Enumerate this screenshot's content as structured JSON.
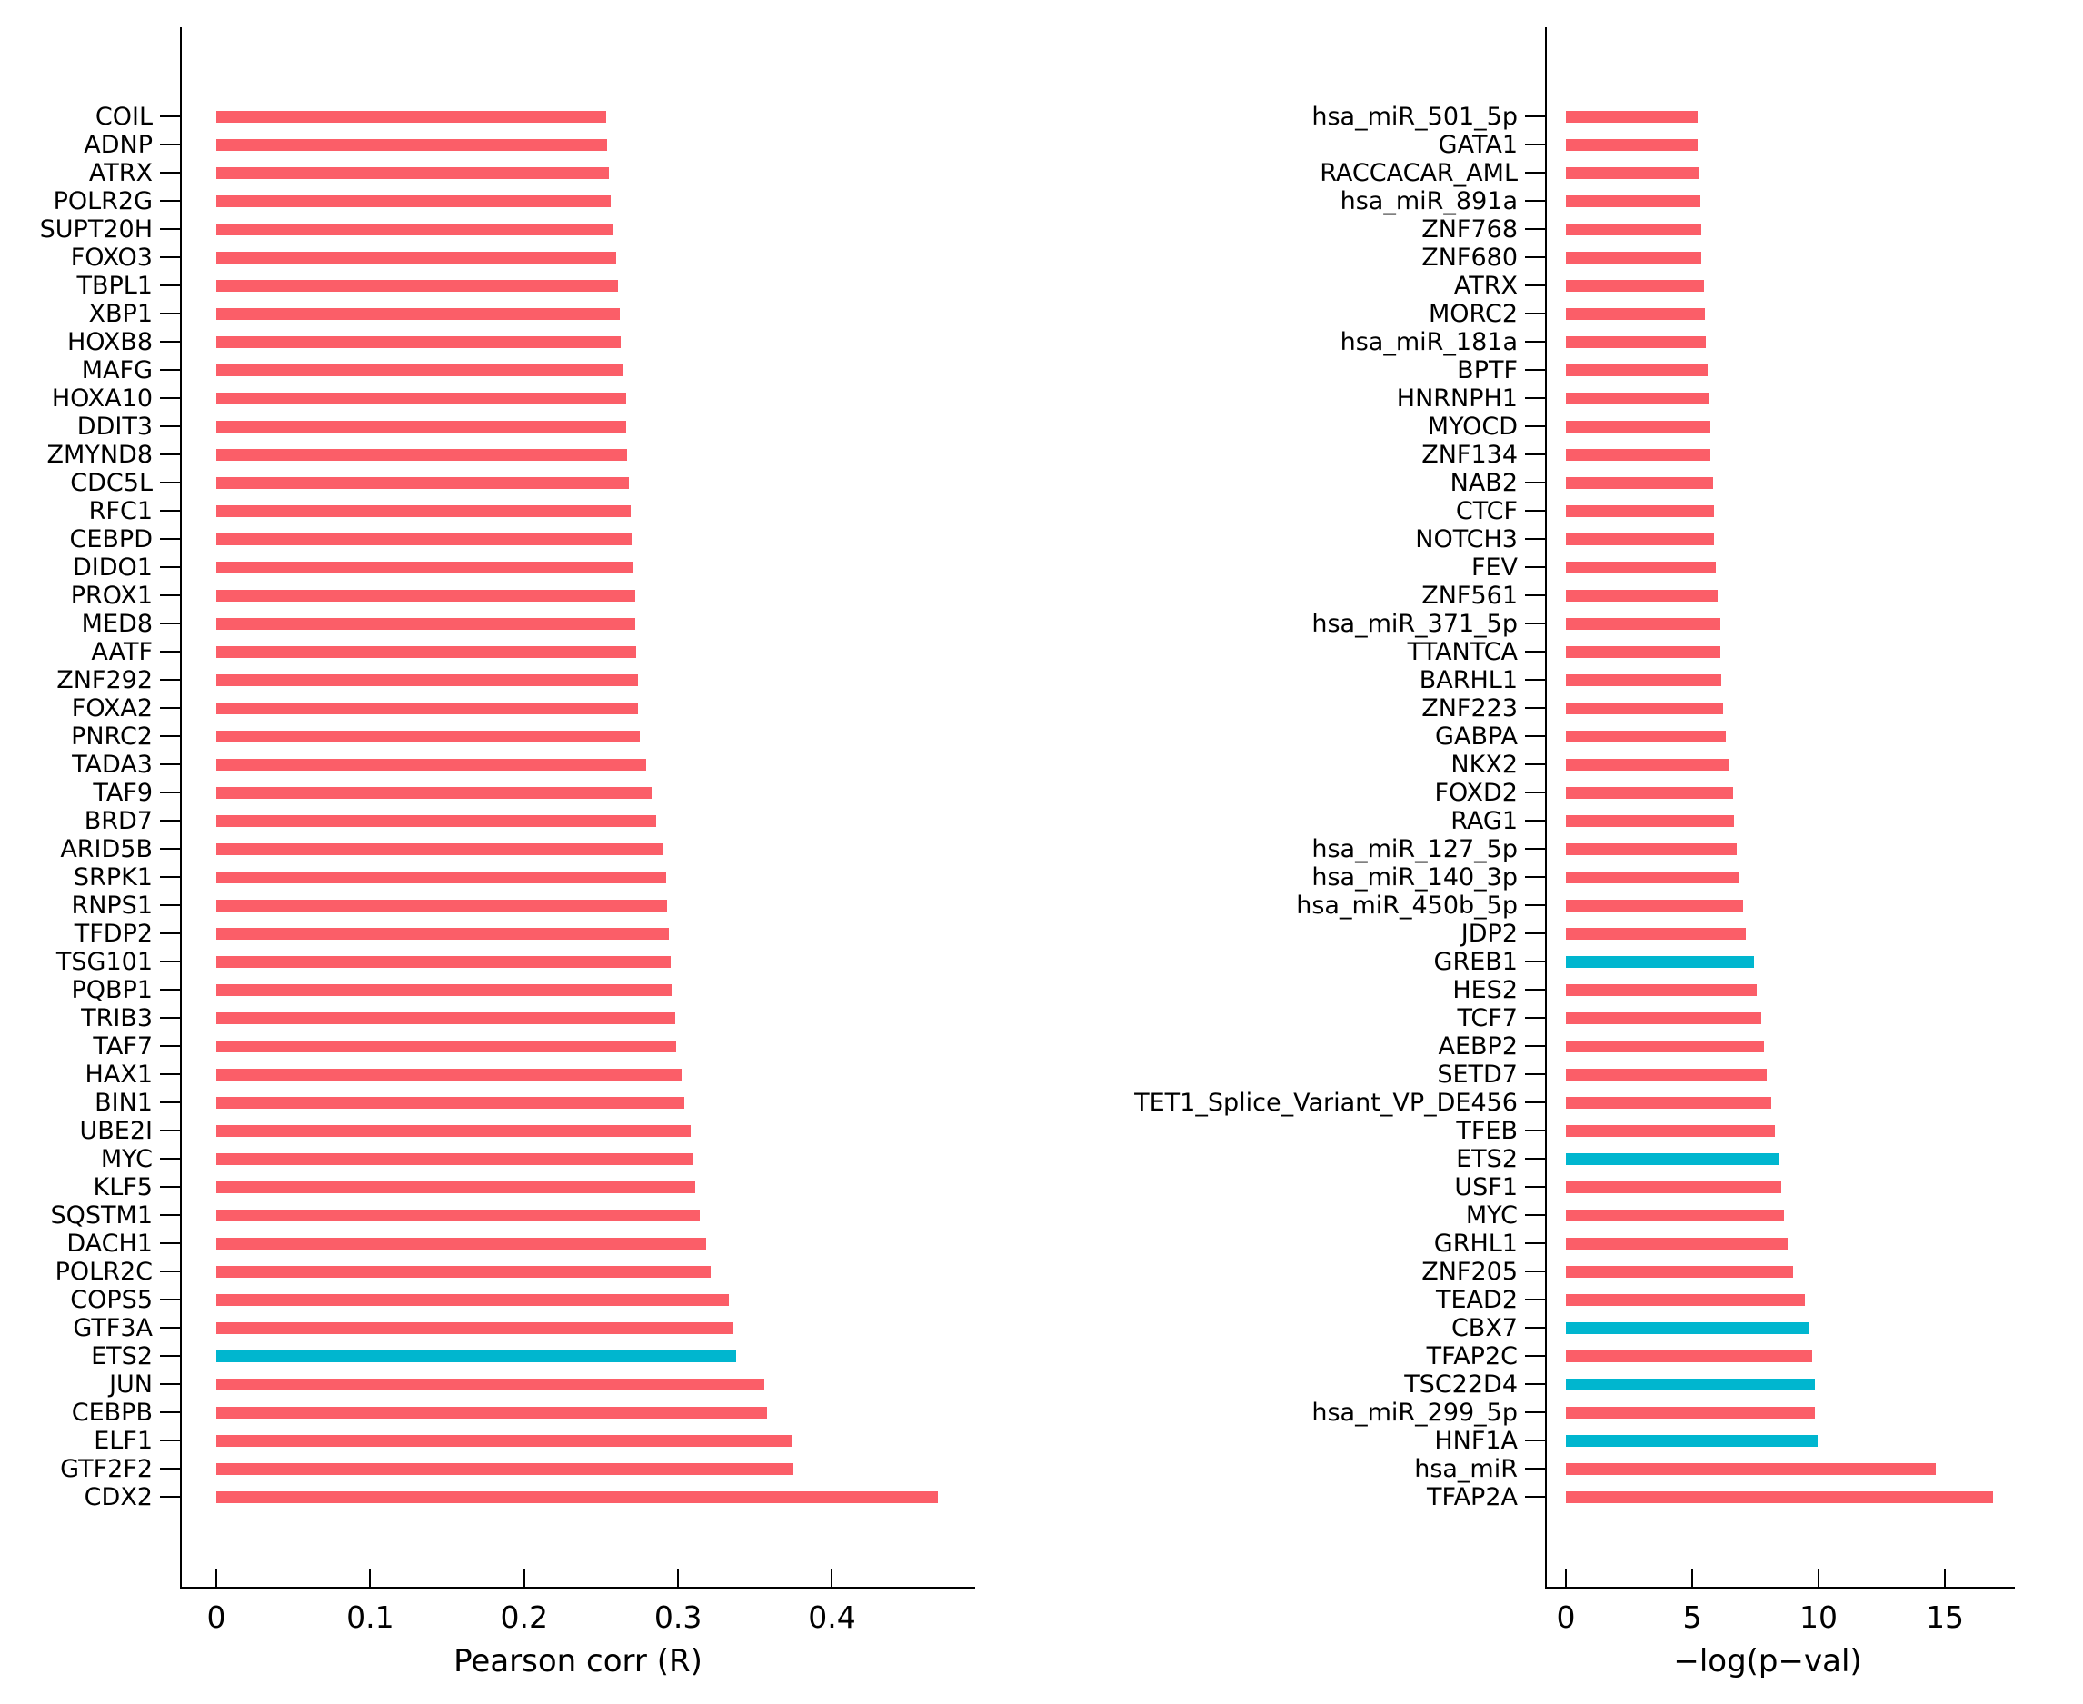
{
  "figure": {
    "background": "#ffffff"
  },
  "palette": {
    "bar_red": "#FB5E68",
    "bar_cyan": "#00B6CF",
    "axis_color": "#000000",
    "text_color": "#000000"
  },
  "chart_data": [
    {
      "type": "bar",
      "orientation": "horizontal",
      "title": "",
      "xlabel": "Pearson corr (R)",
      "ylabel": "",
      "grid": false,
      "legend": null,
      "xlim": [
        0,
        0.493
      ],
      "xticks": [
        0,
        0.1,
        0.2,
        0.3,
        0.4
      ],
      "xtick_labels": [
        "0",
        "0.1",
        "0.2",
        "0.3",
        "0.4"
      ],
      "categories": [
        "COIL",
        "ADNP",
        "ATRX",
        "POLR2G",
        "SUPT20H",
        "FOXO3",
        "TBPL1",
        "XBP1",
        "HOXB8",
        "MAFG",
        "HOXA10",
        "DDIT3",
        "ZMYND8",
        "CDC5L",
        "RFC1",
        "CEBPD",
        "DIDO1",
        "PROX1",
        "MED8",
        "AATF",
        "ZNF292",
        "FOXA2",
        "PNRC2",
        "TADA3",
        "TAF9",
        "BRD7",
        "ARID5B",
        "SRPK1",
        "RNPS1",
        "TFDP2",
        "TSG101",
        "PQBP1",
        "TRIB3",
        "TAF7",
        "HAX1",
        "BIN1",
        "UBE2I",
        "MYC",
        "KLF5",
        "SQSTM1",
        "DACH1",
        "POLR2C",
        "COPS5",
        "GTF3A",
        "ETS2",
        "JUN",
        "CEBPB",
        "ELF1",
        "GTF2F2",
        "CDX2"
      ],
      "values": [
        0.253,
        0.254,
        0.255,
        0.256,
        0.258,
        0.26,
        0.261,
        0.262,
        0.263,
        0.264,
        0.266,
        0.266,
        0.267,
        0.268,
        0.269,
        0.27,
        0.271,
        0.272,
        0.272,
        0.273,
        0.274,
        0.274,
        0.275,
        0.279,
        0.283,
        0.286,
        0.29,
        0.292,
        0.293,
        0.294,
        0.295,
        0.296,
        0.298,
        0.299,
        0.302,
        0.304,
        0.308,
        0.31,
        0.311,
        0.314,
        0.318,
        0.321,
        0.333,
        0.336,
        0.338,
        0.356,
        0.358,
        0.374,
        0.375,
        0.469
      ],
      "highlight_indices": [
        44
      ],
      "bar_color_key": "bar_red",
      "highlight_color_key": "bar_cyan"
    },
    {
      "type": "bar",
      "orientation": "horizontal",
      "title": "",
      "xlabel": "−log(p−val)",
      "ylabel": "",
      "grid": false,
      "legend": null,
      "xlim": [
        0,
        17.77
      ],
      "xticks": [
        0,
        5,
        10,
        15
      ],
      "xtick_labels": [
        "0",
        "5",
        "10",
        "15"
      ],
      "categories": [
        "hsa_miR_501_5p",
        "GATA1",
        "RACCACAR_AML",
        "hsa_miR_891a",
        "ZNF768",
        "ZNF680",
        "ATRX",
        "MORC2",
        "hsa_miR_181a",
        "BPTF",
        "HNRNPH1",
        "MYOCD",
        "ZNF134",
        "NAB2",
        "CTCF",
        "NOTCH3",
        "FEV",
        "ZNF561",
        "hsa_miR_371_5p",
        "TTANTCA",
        "BARHL1",
        "ZNF223",
        "GABPA",
        "NKX2",
        "FOXD2",
        "RAG1",
        "hsa_miR_127_5p",
        "hsa_miR_140_3p",
        "hsa_miR_450b_5p",
        "JDP2",
        "GREB1",
        "HES2",
        "TCF7",
        "AEBP2",
        "SETD7",
        "TET1_Splice_Variant_VP_DE456",
        "TFEB",
        "ETS2",
        "USF1",
        "MYC",
        "GRHL1",
        "ZNF205",
        "TEAD2",
        "CBX7",
        "TFAP2C",
        "TSC22D4",
        "hsa_miR_299_5p",
        "HNF1A",
        "hsa_miR",
        "TFAP2A"
      ],
      "values": [
        5.2,
        5.23,
        5.25,
        5.31,
        5.37,
        5.37,
        5.48,
        5.51,
        5.54,
        5.61,
        5.64,
        5.72,
        5.72,
        5.81,
        5.88,
        5.88,
        5.95,
        6.02,
        6.12,
        6.12,
        6.16,
        6.23,
        6.33,
        6.47,
        6.61,
        6.66,
        6.78,
        6.83,
        7.0,
        7.12,
        7.46,
        7.54,
        7.72,
        7.85,
        7.96,
        8.14,
        8.27,
        8.41,
        8.52,
        8.64,
        8.78,
        8.98,
        9.47,
        9.6,
        9.76,
        9.84,
        9.87,
        9.96,
        14.63,
        16.9
      ],
      "highlight_indices": [
        30,
        37,
        43,
        45,
        47
      ],
      "bar_color_key": "bar_red",
      "highlight_color_key": "bar_cyan"
    }
  ]
}
